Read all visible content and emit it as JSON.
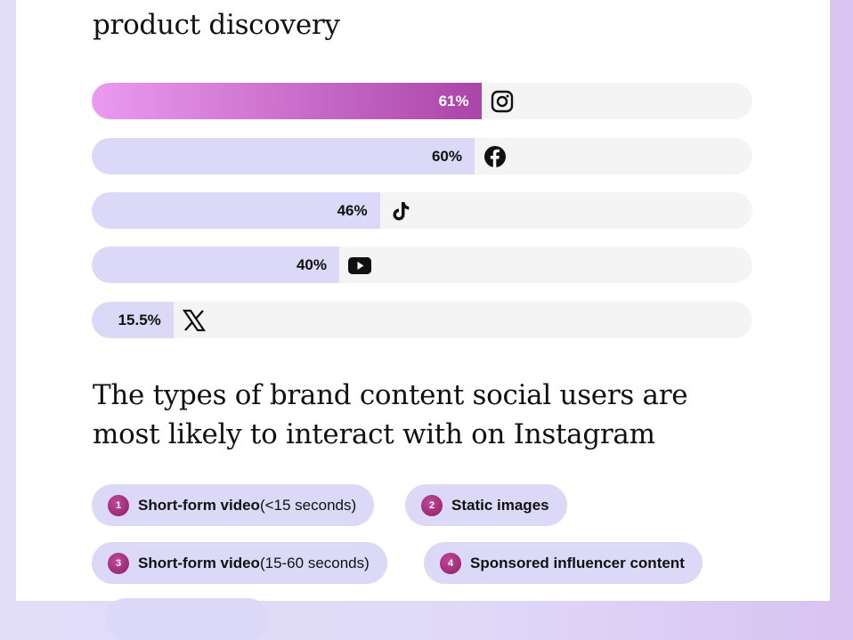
{
  "heading1": "product discovery",
  "chart_data": {
    "type": "bar",
    "orientation": "horizontal",
    "categories": [
      "Instagram",
      "Facebook",
      "TikTok",
      "YouTube",
      "X"
    ],
    "values": [
      61,
      60,
      46,
      40,
      15.5
    ],
    "labels": [
      "61%",
      "60%",
      "46%",
      "40%",
      "15.5%"
    ],
    "icons": [
      "instagram-icon",
      "facebook-icon",
      "tiktok-icon",
      "youtube-icon",
      "x-icon"
    ],
    "highlight_color": "#ab45a8",
    "bar_color": "#dcd8f7",
    "track_color": "#f4f4f4"
  },
  "heading2_line1": "The types of brand content social users are",
  "heading2_line2": "most likely to interact with on Instagram",
  "content_types": [
    {
      "rank": "1",
      "bold": "Short-form video",
      "rest": " (<15 seconds)"
    },
    {
      "rank": "2",
      "bold": "Static images",
      "rest": ""
    },
    {
      "rank": "3",
      "bold": "Short-form video",
      "rest": " (15-60 seconds)"
    },
    {
      "rank": "4",
      "bold": "Sponsored influencer content",
      "rest": ""
    }
  ]
}
